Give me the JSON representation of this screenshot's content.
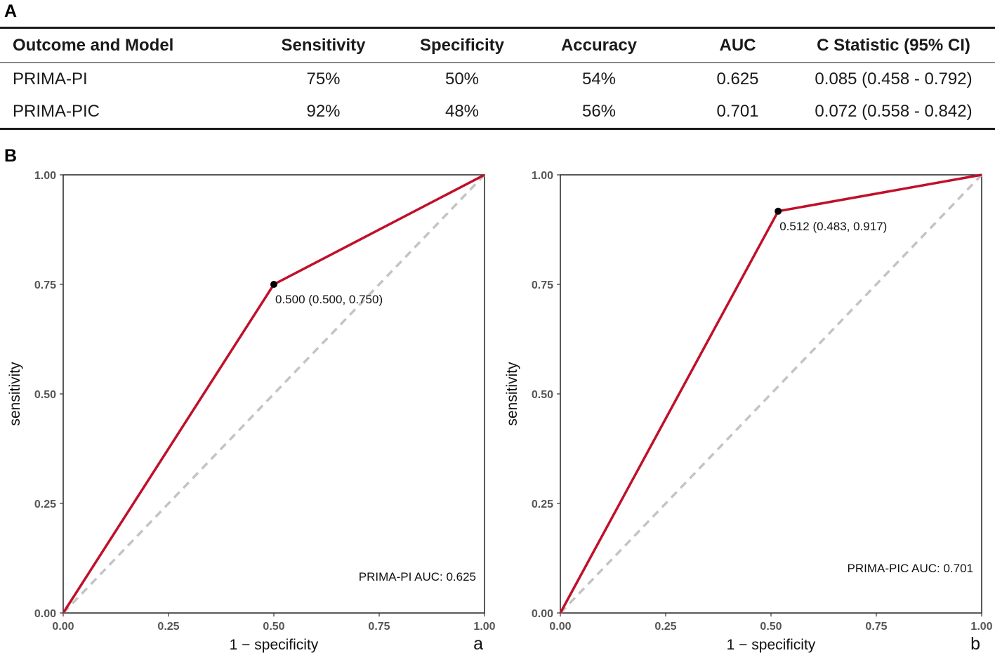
{
  "panel_labels": {
    "a": "A",
    "b": "B"
  },
  "table": {
    "headers": [
      "Outcome and Model",
      "Sensitivity",
      "Specificity",
      "Accuracy",
      "AUC",
      "C Statistic (95% CI)"
    ],
    "rows": [
      [
        "PRIMA-PI",
        "75%",
        "50%",
        "54%",
        "0.625",
        "0.085 (0.458 - 0.792)"
      ],
      [
        "PRIMA-PIC",
        "92%",
        "48%",
        "56%",
        "0.701",
        "0.072 (0.558 - 0.842)"
      ]
    ]
  },
  "chart_data": [
    {
      "type": "line",
      "title": "",
      "sublabel": "a",
      "xlabel": "1 − specificity",
      "ylabel": "sensitivity",
      "xlim": [
        0,
        1
      ],
      "ylim": [
        0,
        1
      ],
      "xticks": [
        "0.00",
        "0.25",
        "0.50",
        "0.75",
        "1.00"
      ],
      "yticks": [
        "0.00",
        "0.25",
        "0.50",
        "0.75",
        "1.00"
      ],
      "series": [
        {
          "name": "ROC",
          "x": [
            0,
            0.5,
            1
          ],
          "y": [
            0,
            0.75,
            1
          ],
          "color": "#c0102a"
        },
        {
          "name": "reference",
          "x": [
            0,
            1
          ],
          "y": [
            0,
            1
          ],
          "color": "#c4c4c4"
        }
      ],
      "point": {
        "x": 0.5,
        "y": 0.75,
        "label": "0.500 (0.500, 0.750)"
      },
      "auc_label": "PRIMA-PI AUC: 0.625"
    },
    {
      "type": "line",
      "title": "",
      "sublabel": "b",
      "xlabel": "1 − specificity",
      "ylabel": "sensitivity",
      "xlim": [
        0,
        1
      ],
      "ylim": [
        0,
        1
      ],
      "xticks": [
        "0.00",
        "0.25",
        "0.50",
        "0.75",
        "1.00"
      ],
      "yticks": [
        "0.00",
        "0.25",
        "0.50",
        "0.75",
        "1.00"
      ],
      "series": [
        {
          "name": "ROC",
          "x": [
            0,
            0.517,
            1
          ],
          "y": [
            0,
            0.917,
            1
          ],
          "color": "#c0102a"
        },
        {
          "name": "reference",
          "x": [
            0,
            1
          ],
          "y": [
            0,
            1
          ],
          "color": "#c4c4c4"
        }
      ],
      "point": {
        "x": 0.517,
        "y": 0.917,
        "label": "0.512 (0.483, 0.917)"
      },
      "auc_label": "PRIMA-PIC  AUC: 0.701"
    }
  ]
}
